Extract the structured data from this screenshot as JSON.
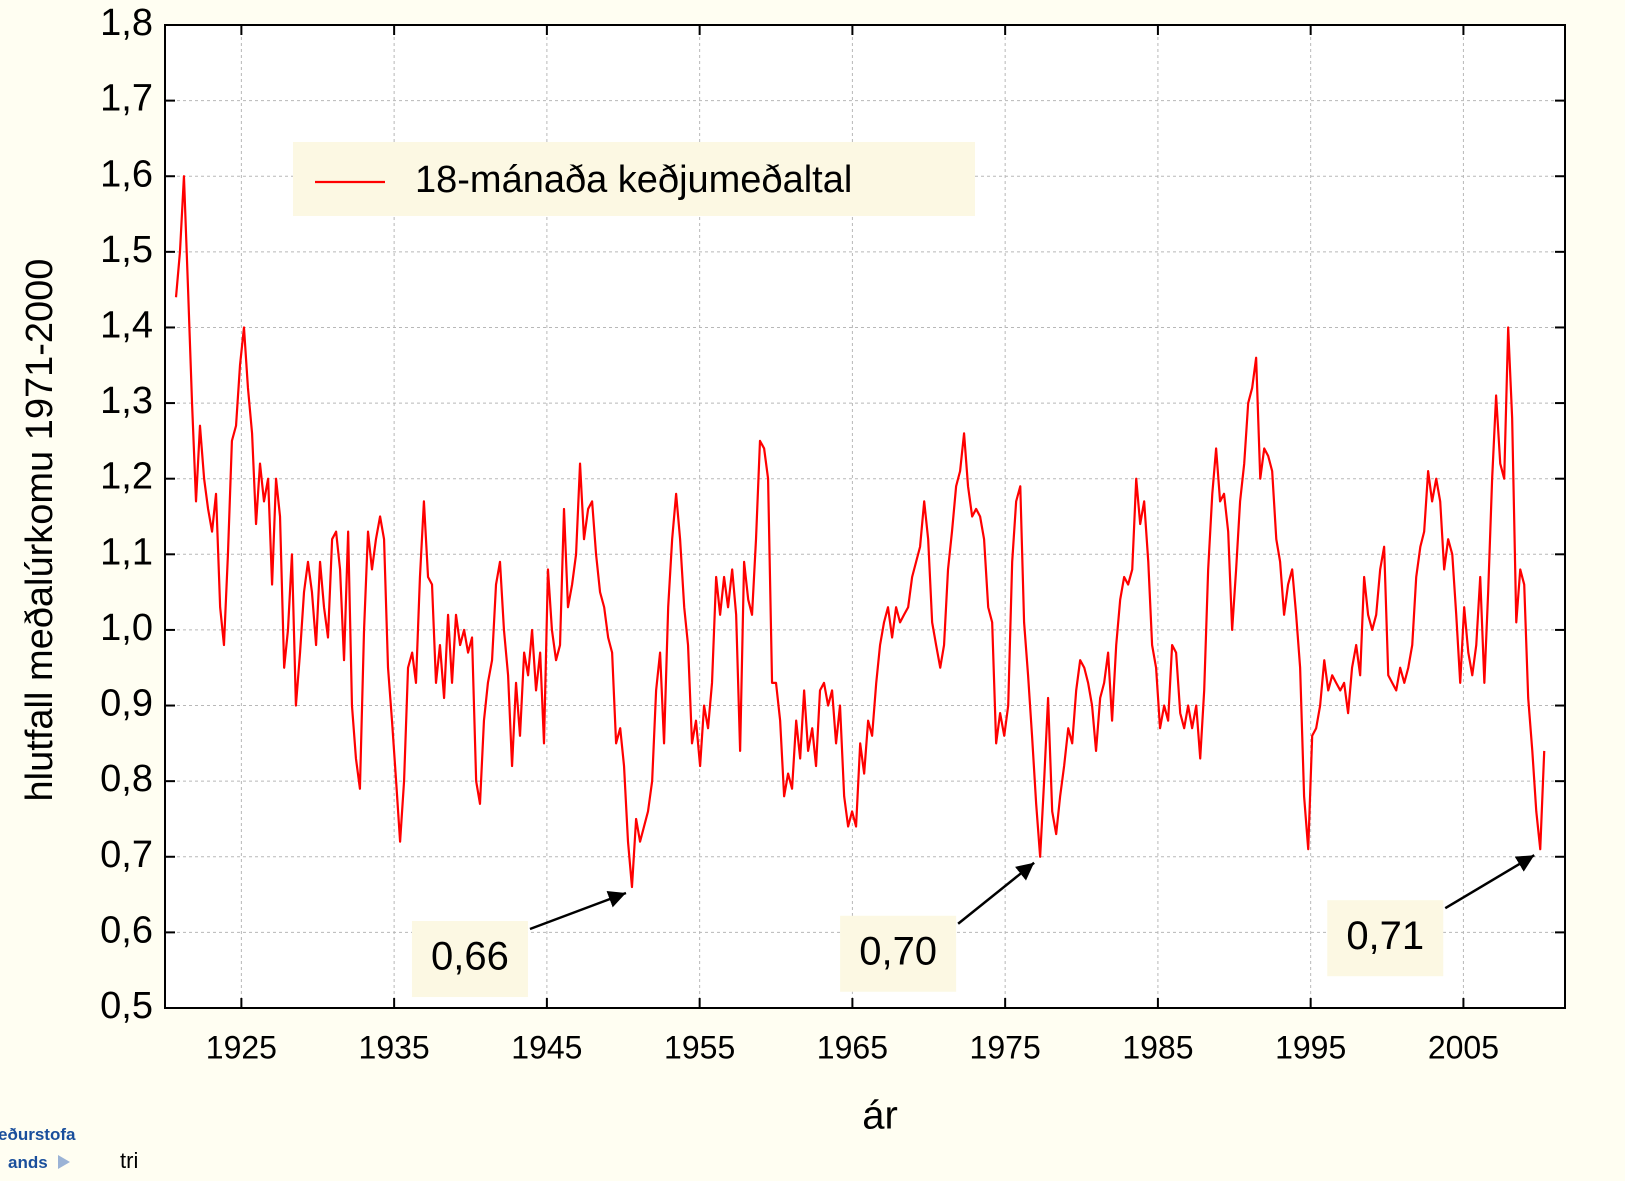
{
  "chart_data": {
    "type": "line",
    "x_label": "ár",
    "y_label": "hlutfall meðalúrkomu 1971-2000",
    "xlim": [
      1920,
      2011.65
    ],
    "ylim": [
      0.5,
      1.8
    ],
    "xticks": [
      1925,
      1935,
      1945,
      1955,
      1965,
      1975,
      1985,
      1995,
      2005
    ],
    "yticks": [
      {
        "value": 0.5,
        "label": "0,5"
      },
      {
        "value": 0.6,
        "label": "0,6"
      },
      {
        "value": 0.7,
        "label": "0,7"
      },
      {
        "value": 0.8,
        "label": "0,8"
      },
      {
        "value": 0.9,
        "label": "0,9"
      },
      {
        "value": 1.0,
        "label": "1,0"
      },
      {
        "value": 1.1,
        "label": "1,1"
      },
      {
        "value": 1.2,
        "label": "1,2"
      },
      {
        "value": 1.3,
        "label": "1,3"
      },
      {
        "value": 1.4,
        "label": "1,4"
      },
      {
        "value": 1.5,
        "label": "1,5"
      },
      {
        "value": 1.6,
        "label": "1,6"
      },
      {
        "value": 1.7,
        "label": "1,7"
      },
      {
        "value": 1.8,
        "label": "1,8"
      }
    ],
    "grid": true,
    "legend": "upper left",
    "x": [
      1920.72,
      1920.98,
      1921.24,
      1921.51,
      1921.77,
      1922.03,
      1922.29,
      1922.56,
      1922.82,
      1923.08,
      1923.34,
      1923.61,
      1923.86,
      1924.12,
      1924.38,
      1924.65,
      1924.91,
      1925.17,
      1925.43,
      1925.7,
      1925.96,
      1926.22,
      1926.48,
      1926.75,
      1927.01,
      1927.27,
      1927.53,
      1927.8,
      1928.05,
      1928.31,
      1928.57,
      1928.84,
      1929.1,
      1929.36,
      1929.62,
      1929.89,
      1930.15,
      1930.41,
      1930.67,
      1930.94,
      1931.2,
      1931.46,
      1931.72,
      1931.99,
      1932.24,
      1932.5,
      1932.76,
      1933.03,
      1933.29,
      1933.55,
      1933.81,
      1934.08,
      1934.34,
      1934.6,
      1934.86,
      1935.13,
      1935.39,
      1935.65,
      1935.91,
      1936.18,
      1936.43,
      1936.69,
      1936.95,
      1937.22,
      1937.48,
      1937.74,
      1938.0,
      1938.27,
      1938.53,
      1938.79,
      1939.05,
      1939.32,
      1939.58,
      1939.84,
      1940.1,
      1940.37,
      1940.62,
      1940.88,
      1941.14,
      1941.41,
      1941.67,
      1941.93,
      1942.19,
      1942.46,
      1942.72,
      1942.98,
      1943.24,
      1943.51,
      1943.77,
      1944.03,
      1944.29,
      1944.56,
      1944.81,
      1945.07,
      1945.33,
      1945.6,
      1945.86,
      1946.12,
      1946.38,
      1946.65,
      1946.91,
      1947.17,
      1947.43,
      1947.7,
      1947.96,
      1948.22,
      1948.48,
      1948.75,
      1949.01,
      1949.27,
      1949.53,
      1949.8,
      1950.05,
      1950.31,
      1950.57,
      1950.84,
      1951.1,
      1951.36,
      1951.62,
      1951.89,
      1952.15,
      1952.41,
      1952.67,
      1952.94,
      1953.2,
      1953.46,
      1953.72,
      1953.99,
      1954.24,
      1954.5,
      1954.76,
      1955.03,
      1955.29,
      1955.55,
      1955.81,
      1956.08,
      1956.34,
      1956.6,
      1956.86,
      1957.13,
      1957.39,
      1957.65,
      1957.91,
      1958.18,
      1958.43,
      1958.69,
      1958.95,
      1959.22,
      1959.48,
      1959.74,
      1960.0,
      1960.27,
      1960.53,
      1960.79,
      1961.05,
      1961.32,
      1961.58,
      1961.84,
      1962.1,
      1962.37,
      1962.62,
      1962.88,
      1963.14,
      1963.41,
      1963.67,
      1963.93,
      1964.19,
      1964.46,
      1964.72,
      1964.98,
      1965.24,
      1965.51,
      1965.77,
      1966.03,
      1966.29,
      1966.56,
      1966.81,
      1967.07,
      1967.33,
      1967.6,
      1967.86,
      1968.12,
      1968.38,
      1968.65,
      1968.91,
      1969.17,
      1969.43,
      1969.7,
      1969.96,
      1970.22,
      1970.48,
      1970.75,
      1971.0,
      1971.26,
      1971.52,
      1971.79,
      1972.05,
      1972.31,
      1972.57,
      1972.84,
      1973.1,
      1973.36,
      1973.62,
      1973.89,
      1974.15,
      1974.41,
      1974.67,
      1974.94,
      1975.2,
      1975.46,
      1975.72,
      1975.99,
      1976.24,
      1976.5,
      1976.76,
      1977.03,
      1977.29,
      1977.55,
      1977.81,
      1978.08,
      1978.34,
      1978.6,
      1978.86,
      1979.13,
      1979.39,
      1979.65,
      1979.91,
      1980.18,
      1980.43,
      1980.69,
      1980.95,
      1981.22,
      1981.48,
      1981.74,
      1982.0,
      1982.27,
      1982.53,
      1982.79,
      1983.05,
      1983.32,
      1983.58,
      1983.84,
      1984.1,
      1984.37,
      1984.62,
      1984.88,
      1985.14,
      1985.41,
      1985.67,
      1985.93,
      1986.19,
      1986.46,
      1986.72,
      1986.98,
      1987.24,
      1987.51,
      1987.77,
      1988.03,
      1988.29,
      1988.56,
      1988.81,
      1989.07,
      1989.33,
      1989.6,
      1989.86,
      1990.12,
      1990.38,
      1990.65,
      1990.91,
      1991.17,
      1991.43,
      1991.7,
      1991.96,
      1992.22,
      1992.48,
      1992.75,
      1993.0,
      1993.26,
      1993.52,
      1993.79,
      1994.05,
      1994.31,
      1994.57,
      1994.84,
      1995.1,
      1995.36,
      1995.62,
      1995.89,
      1996.15,
      1996.41,
      1996.67,
      1996.94,
      1997.19,
      1997.45,
      1997.71,
      1997.98,
      1998.24,
      1998.5,
      1998.76,
      1999.03,
      1999.29,
      1999.55,
      1999.81,
      2000.08,
      2000.34,
      2000.6,
      2000.86,
      2001.13,
      2001.39,
      2001.65,
      2001.91,
      2002.18,
      2002.43,
      2002.69,
      2002.95,
      2003.22,
      2003.48,
      2003.74,
      2004.0,
      2004.27,
      2004.53,
      2004.79,
      2005.05,
      2005.32,
      2005.58,
      2005.84,
      2006.1,
      2006.37,
      2006.62,
      2006.88,
      2007.14,
      2007.41,
      2007.67,
      2007.93,
      2008.19,
      2008.46,
      2008.72,
      2008.98,
      2009.24,
      2009.51,
      2009.77,
      2010.03,
      2010.29
    ],
    "series": [
      {
        "name": "18-mánaða keðjumeðaltal",
        "color": "#ff0000",
        "values": [
          1.44,
          1.5,
          1.6,
          1.45,
          1.3,
          1.17,
          1.27,
          1.2,
          1.16,
          1.13,
          1.18,
          1.03,
          0.98,
          1.1,
          1.25,
          1.27,
          1.35,
          1.4,
          1.32,
          1.26,
          1.14,
          1.22,
          1.17,
          1.2,
          1.06,
          1.2,
          1.15,
          0.95,
          1.0,
          1.1,
          0.9,
          0.97,
          1.05,
          1.09,
          1.05,
          0.98,
          1.09,
          1.03,
          0.99,
          1.12,
          1.13,
          1.08,
          0.96,
          1.13,
          0.9,
          0.83,
          0.79,
          1.0,
          1.13,
          1.08,
          1.12,
          1.15,
          1.12,
          0.95,
          0.88,
          0.8,
          0.72,
          0.8,
          0.95,
          0.97,
          0.93,
          1.07,
          1.17,
          1.07,
          1.06,
          0.93,
          0.98,
          0.91,
          1.02,
          0.93,
          1.02,
          0.98,
          1.0,
          0.97,
          0.99,
          0.8,
          0.77,
          0.88,
          0.93,
          0.96,
          1.06,
          1.09,
          1.0,
          0.94,
          0.82,
          0.93,
          0.86,
          0.97,
          0.94,
          1.0,
          0.92,
          0.97,
          0.85,
          1.08,
          1.0,
          0.96,
          0.98,
          1.16,
          1.03,
          1.06,
          1.1,
          1.22,
          1.12,
          1.16,
          1.17,
          1.1,
          1.05,
          1.03,
          0.99,
          0.97,
          0.85,
          0.87,
          0.82,
          0.72,
          0.66,
          0.75,
          0.72,
          0.74,
          0.76,
          0.8,
          0.92,
          0.97,
          0.85,
          1.03,
          1.12,
          1.18,
          1.12,
          1.03,
          0.98,
          0.85,
          0.88,
          0.82,
          0.9,
          0.87,
          0.93,
          1.07,
          1.02,
          1.07,
          1.03,
          1.08,
          1.02,
          0.84,
          1.09,
          1.04,
          1.02,
          1.12,
          1.25,
          1.24,
          1.2,
          0.93,
          0.93,
          0.88,
          0.78,
          0.81,
          0.79,
          0.88,
          0.83,
          0.92,
          0.84,
          0.87,
          0.82,
          0.92,
          0.93,
          0.9,
          0.92,
          0.85,
          0.9,
          0.78,
          0.74,
          0.76,
          0.74,
          0.85,
          0.81,
          0.88,
          0.86,
          0.93,
          0.98,
          1.01,
          1.03,
          0.99,
          1.03,
          1.01,
          1.02,
          1.03,
          1.07,
          1.09,
          1.11,
          1.17,
          1.12,
          1.01,
          0.98,
          0.95,
          0.98,
          1.08,
          1.13,
          1.19,
          1.21,
          1.26,
          1.19,
          1.15,
          1.16,
          1.15,
          1.12,
          1.03,
          1.01,
          0.85,
          0.89,
          0.86,
          0.9,
          1.09,
          1.17,
          1.19,
          1.01,
          0.94,
          0.86,
          0.77,
          0.7,
          0.8,
          0.91,
          0.76,
          0.73,
          0.78,
          0.82,
          0.87,
          0.85,
          0.92,
          0.96,
          0.95,
          0.93,
          0.9,
          0.84,
          0.91,
          0.93,
          0.97,
          0.88,
          0.98,
          1.04,
          1.07,
          1.06,
          1.08,
          1.2,
          1.14,
          1.17,
          1.09,
          0.98,
          0.95,
          0.87,
          0.9,
          0.88,
          0.98,
          0.97,
          0.89,
          0.87,
          0.9,
          0.87,
          0.9,
          0.83,
          0.92,
          1.08,
          1.18,
          1.24,
          1.17,
          1.18,
          1.13,
          1.0,
          1.08,
          1.17,
          1.22,
          1.3,
          1.32,
          1.36,
          1.2,
          1.24,
          1.23,
          1.21,
          1.12,
          1.09,
          1.02,
          1.06,
          1.08,
          1.02,
          0.95,
          0.78,
          0.71,
          0.86,
          0.87,
          0.9,
          0.96,
          0.92,
          0.94,
          0.93,
          0.92,
          0.93,
          0.89,
          0.95,
          0.98,
          0.94,
          1.07,
          1.02,
          1.0,
          1.02,
          1.08,
          1.11,
          0.94,
          0.93,
          0.92,
          0.95,
          0.93,
          0.95,
          0.98,
          1.07,
          1.11,
          1.13,
          1.21,
          1.17,
          1.2,
          1.17,
          1.08,
          1.12,
          1.1,
          1.02,
          0.93,
          1.03,
          0.97,
          0.94,
          0.98,
          1.07,
          0.93,
          1.05,
          1.2,
          1.31,
          1.22,
          1.2,
          1.4,
          1.28,
          1.01,
          1.08,
          1.06,
          0.91,
          0.84,
          0.76,
          0.71,
          0.84
        ]
      }
    ],
    "annotations": [
      {
        "label": "0,66",
        "x": 1950.57,
        "value": 0.66
      },
      {
        "label": "0,70",
        "x": 1977.29,
        "value": 0.7
      },
      {
        "label": "0,71",
        "x": 2010.03,
        "value": 0.71
      }
    ]
  },
  "footer": {
    "logo": [
      "eðurstofa",
      "ands"
    ],
    "text": "tri"
  }
}
